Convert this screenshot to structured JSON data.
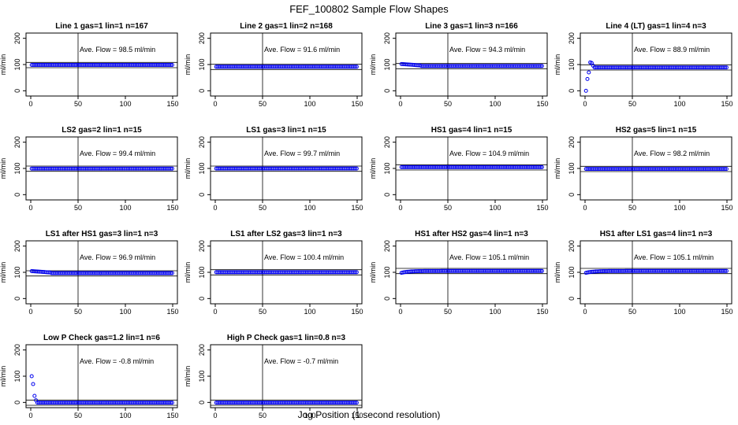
{
  "figure": {
    "title": "FEF_100802  Sample Flow Shapes",
    "xlabel": "Jog Position (1 second resolution)"
  },
  "colors": {
    "points": "#0000ee",
    "axis": "#000000"
  },
  "chart_data": [
    {
      "type": "scatter",
      "title": "Line 1 gas=1 lin=1 n=167",
      "ylabel": "ml/min",
      "annotation": "Ave. Flow =  98.5  ml/min",
      "xlim": [
        0,
        150
      ],
      "ylim": [
        -20,
        220
      ],
      "xticks": [
        0,
        50,
        100,
        150
      ],
      "yticks": [
        0,
        100,
        200
      ],
      "vline_x": 50,
      "hlines": [
        88,
        108
      ],
      "shape": "flat",
      "level": 98.5
    },
    {
      "type": "scatter",
      "title": "Line 2 gas=1 lin=2 n=168",
      "ylabel": "ml/min",
      "annotation": "Ave. Flow =  91.6  ml/min",
      "xlim": [
        0,
        150
      ],
      "ylim": [
        -20,
        220
      ],
      "xticks": [
        0,
        50,
        100,
        150
      ],
      "yticks": [
        0,
        100,
        200
      ],
      "vline_x": 50,
      "hlines": [
        81,
        101
      ],
      "shape": "flat",
      "level": 91.6
    },
    {
      "type": "scatter",
      "title": "Line 3 gas=1 lin=3 n=166",
      "ylabel": "ml/min",
      "annotation": "Ave. Flow =  94.3  ml/min",
      "xlim": [
        0,
        150
      ],
      "ylim": [
        -20,
        220
      ],
      "xticks": [
        0,
        50,
        100,
        150
      ],
      "yticks": [
        0,
        100,
        200
      ],
      "vline_x": 50,
      "hlines": [
        84,
        104
      ],
      "shape": "early-high",
      "level": 94.3
    },
    {
      "type": "scatter",
      "title": "Line 4 (LT) gas=1 lin=4 n=3",
      "ylabel": "ml/min",
      "annotation": "Ave. Flow =  88.9  ml/min",
      "xlim": [
        0,
        150
      ],
      "ylim": [
        -20,
        220
      ],
      "xticks": [
        0,
        50,
        100,
        150
      ],
      "yticks": [
        0,
        100,
        200
      ],
      "vline_x": 50,
      "hlines": [
        79,
        99
      ],
      "shape": "rise-overshoot",
      "level": 88.9
    },
    {
      "type": "scatter",
      "title": "LS2 gas=2 lin=1 n=15",
      "ylabel": "ml/min",
      "annotation": "Ave. Flow =  99.4  ml/min",
      "xlim": [
        0,
        150
      ],
      "ylim": [
        -20,
        220
      ],
      "xticks": [
        0,
        50,
        100,
        150
      ],
      "yticks": [
        0,
        100,
        200
      ],
      "vline_x": 50,
      "hlines": [
        89,
        109
      ],
      "shape": "flat",
      "level": 99.4
    },
    {
      "type": "scatter",
      "title": "LS1 gas=3 lin=1 n=15",
      "ylabel": "ml/min",
      "annotation": "Ave. Flow =  99.7  ml/min",
      "xlim": [
        0,
        150
      ],
      "ylim": [
        -20,
        220
      ],
      "xticks": [
        0,
        50,
        100,
        150
      ],
      "yticks": [
        0,
        100,
        200
      ],
      "vline_x": 50,
      "hlines": [
        89,
        109
      ],
      "shape": "flat",
      "level": 99.7
    },
    {
      "type": "scatter",
      "title": "HS1 gas=4 lin=1 n=15",
      "ylabel": "ml/min",
      "annotation": "Ave. Flow =  104.9  ml/min",
      "xlim": [
        0,
        150
      ],
      "ylim": [
        -20,
        220
      ],
      "xticks": [
        0,
        50,
        100,
        150
      ],
      "yticks": [
        0,
        100,
        200
      ],
      "vline_x": 50,
      "hlines": [
        94,
        114
      ],
      "shape": "flat",
      "level": 104.9
    },
    {
      "type": "scatter",
      "title": "HS2 gas=5 lin=1 n=15",
      "ylabel": "ml/min",
      "annotation": "Ave. Flow =  98.2  ml/min",
      "xlim": [
        0,
        150
      ],
      "ylim": [
        -20,
        220
      ],
      "xticks": [
        0,
        50,
        100,
        150
      ],
      "yticks": [
        0,
        100,
        200
      ],
      "vline_x": 50,
      "hlines": [
        88,
        108
      ],
      "shape": "flat",
      "level": 98.2
    },
    {
      "type": "scatter",
      "title": "LS1 after HS1 gas=3 lin=1 n=3",
      "ylabel": "ml/min",
      "annotation": "Ave. Flow =  96.9  ml/min",
      "xlim": [
        0,
        150
      ],
      "ylim": [
        -20,
        220
      ],
      "xticks": [
        0,
        50,
        100,
        150
      ],
      "yticks": [
        0,
        100,
        200
      ],
      "vline_x": 50,
      "hlines": [
        86,
        106
      ],
      "shape": "early-high",
      "level": 96.9
    },
    {
      "type": "scatter",
      "title": "LS1 after LS2 gas=3 lin=1 n=3",
      "ylabel": "ml/min",
      "annotation": "Ave. Flow =  100.4  ml/min",
      "xlim": [
        0,
        150
      ],
      "ylim": [
        -20,
        220
      ],
      "xticks": [
        0,
        50,
        100,
        150
      ],
      "yticks": [
        0,
        100,
        200
      ],
      "vline_x": 50,
      "hlines": [
        90,
        110
      ],
      "shape": "flat",
      "level": 100.4
    },
    {
      "type": "scatter",
      "title": "HS1 after HS2 gas=4 lin=1 n=3",
      "ylabel": "ml/min",
      "annotation": "Ave. Flow =  105.1  ml/min",
      "xlim": [
        0,
        150
      ],
      "ylim": [
        -20,
        220
      ],
      "xticks": [
        0,
        50,
        100,
        150
      ],
      "yticks": [
        0,
        100,
        200
      ],
      "vline_x": 50,
      "hlines": [
        95,
        115
      ],
      "shape": "slight-rise",
      "level": 105.1
    },
    {
      "type": "scatter",
      "title": "HS1 after LS1 gas=4 lin=1 n=3",
      "ylabel": "ml/min",
      "annotation": "Ave. Flow =  105.1  ml/min",
      "xlim": [
        0,
        150
      ],
      "ylim": [
        -20,
        220
      ],
      "xticks": [
        0,
        50,
        100,
        150
      ],
      "yticks": [
        0,
        100,
        200
      ],
      "vline_x": 50,
      "hlines": [
        95,
        115
      ],
      "shape": "slight-rise",
      "level": 105.1
    },
    {
      "type": "scatter",
      "title": "Low P Check gas=1.2 lin=1 n=6",
      "ylabel": "ml/min",
      "annotation": "Ave. Flow =  -0.8  ml/min",
      "xlim": [
        0,
        150
      ],
      "ylim": [
        -20,
        220
      ],
      "xticks": [
        0,
        50,
        100,
        150
      ],
      "yticks": [
        0,
        100,
        200
      ],
      "vline_x": 50,
      "hlines": [
        -11,
        9
      ],
      "shape": "decay",
      "level": -0.8
    },
    {
      "type": "scatter",
      "title": "High P Check gas=1 lin=0.8 n=3",
      "ylabel": "ml/min",
      "annotation": "Ave. Flow =  -0.7  ml/min",
      "xlim": [
        0,
        150
      ],
      "ylim": [
        -20,
        220
      ],
      "xticks": [
        0,
        50,
        100,
        150
      ],
      "yticks": [
        0,
        100,
        200
      ],
      "vline_x": 50,
      "hlines": [
        -11,
        9
      ],
      "shape": "flat",
      "level": -0.7
    }
  ]
}
